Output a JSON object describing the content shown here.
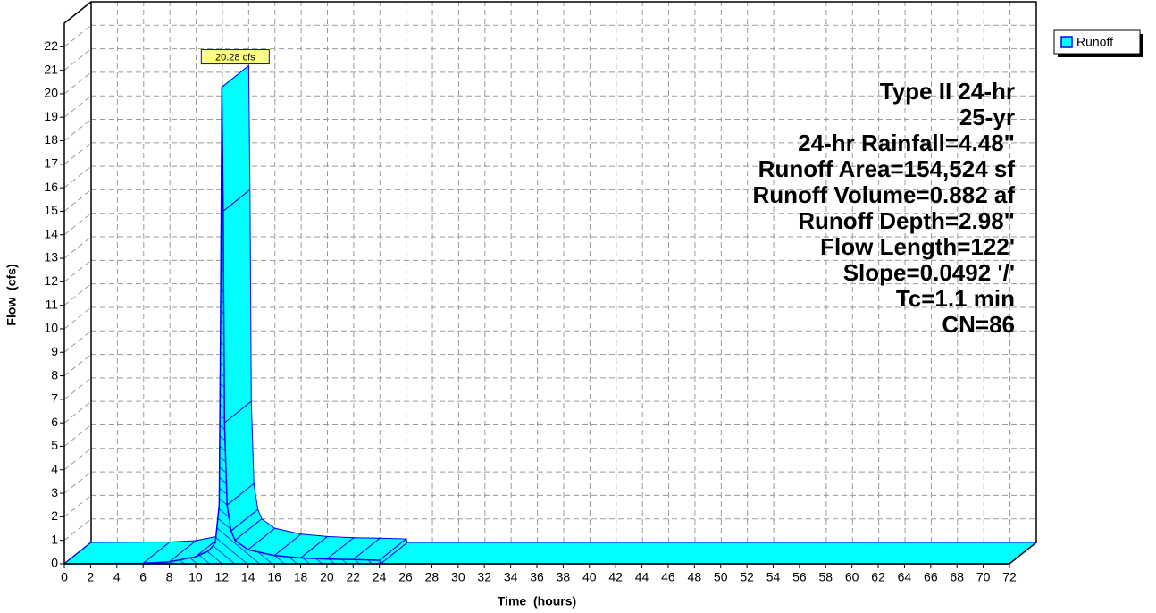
{
  "chart_data": {
    "type": "area3d",
    "xlabel": "Time  (hours)",
    "ylabel": "Flow  (cfs)",
    "x": [
      0,
      6,
      8,
      10,
      11,
      11.5,
      11.8,
      11.9,
      12,
      12.1,
      12.2,
      12.4,
      12.7,
      13,
      14,
      16,
      18,
      20,
      22,
      24,
      24.1,
      72
    ],
    "series": [
      {
        "name": "Runoff",
        "color": "#00ffff",
        "values": [
          0,
          0.02,
          0.08,
          0.3,
          0.55,
          0.9,
          2.5,
          10,
          20.28,
          15,
          6,
          2.5,
          1.4,
          1.0,
          0.6,
          0.35,
          0.25,
          0.2,
          0.18,
          0.15,
          0,
          0
        ],
        "value_labels": [
          null,
          null,
          null,
          null,
          null,
          null,
          null,
          null,
          "20.28 cfs",
          null,
          null,
          null,
          null,
          null,
          null,
          null,
          null,
          null,
          null,
          null,
          null,
          null
        ]
      }
    ],
    "xlim": [
      0,
      72
    ],
    "xticks": [
      0,
      2,
      4,
      6,
      8,
      10,
      12,
      14,
      16,
      18,
      20,
      22,
      24,
      26,
      28,
      30,
      32,
      34,
      36,
      38,
      40,
      42,
      44,
      46,
      48,
      50,
      52,
      54,
      56,
      58,
      60,
      62,
      64,
      66,
      68,
      70,
      72
    ],
    "ylim": [
      0,
      23
    ],
    "yticks": [
      0,
      1,
      2,
      3,
      4,
      5,
      6,
      7,
      8,
      9,
      10,
      11,
      12,
      13,
      14,
      15,
      16,
      17,
      18,
      19,
      20,
      21,
      22
    ],
    "grid": true,
    "legend": "top-right",
    "annotations": [
      "Type II 24-hr",
      "25-yr",
      "24-hr Rainfall=4.48\"",
      "Runoff Area=154,524 sf",
      "Runoff Volume=0.882 af",
      "Runoff Depth=2.98\"",
      "Flow Length=122'",
      "Slope=0.0492 '/'",
      "Tc=1.1 min",
      "CN=86"
    ]
  }
}
